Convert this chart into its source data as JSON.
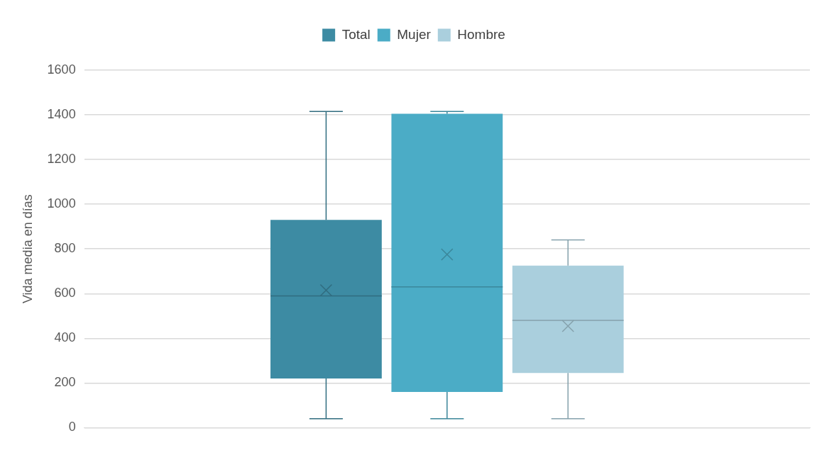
{
  "chart_data": {
    "type": "box",
    "ylabel": "Vida media en días",
    "categories": [
      null
    ],
    "series": [
      {
        "name": "Total",
        "color": "#3d8ba3",
        "boxes": [
          {
            "low": 40,
            "q1": 220,
            "median": 590,
            "q3": 930,
            "high": 1415,
            "mean": 615
          }
        ]
      },
      {
        "name": "Mujer",
        "color": "#4bacc6",
        "boxes": [
          {
            "low": 40,
            "q1": 160,
            "median": 630,
            "q3": 1405,
            "high": 1415,
            "mean": 775
          }
        ]
      },
      {
        "name": "Hombre",
        "color": "#aacfdd",
        "boxes": [
          {
            "low": 40,
            "q1": 245,
            "median": 480,
            "q3": 725,
            "high": 840,
            "mean": 455
          }
        ]
      }
    ],
    "ylim": [
      0,
      1600
    ],
    "yticks": [
      0,
      200,
      400,
      600,
      800,
      1000,
      1200,
      1400,
      1600
    ],
    "grid": "y",
    "legend": "top"
  }
}
